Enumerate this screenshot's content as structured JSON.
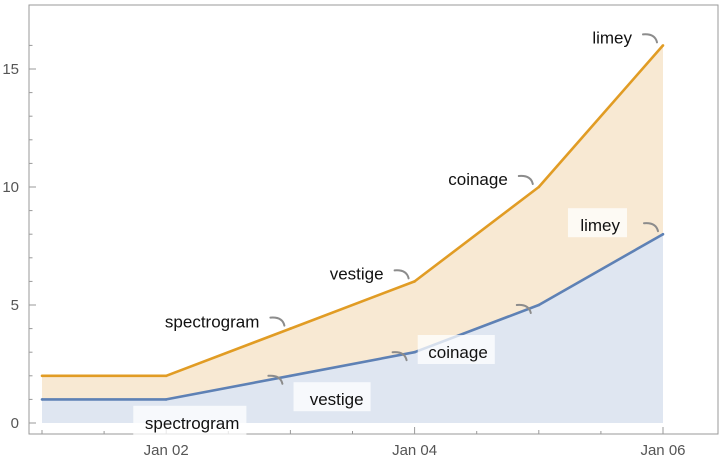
{
  "chart_data": {
    "type": "area",
    "stacked": true,
    "x_type": "date",
    "x": [
      "Jan 01",
      "Jan 02",
      "Jan 03",
      "Jan 04",
      "Jan 05",
      "Jan 06"
    ],
    "x_tick_labels": [
      "Jan 02",
      "Jan 04",
      "Jan 06"
    ],
    "y_ticks": [
      0,
      5,
      10,
      15
    ],
    "ylim": [
      0,
      16.8
    ],
    "grid": false,
    "legend": "none",
    "series": [
      {
        "values": [
          1,
          1,
          2,
          3,
          5,
          8
        ],
        "totals": [
          1,
          1,
          2,
          3,
          5,
          8
        ],
        "line_color": "#5e81b5",
        "fill_color": "#dfe6f1",
        "callouts": [
          {
            "label": "spectrogram",
            "x_index": 2,
            "boxed": true
          },
          {
            "label": "vestige",
            "x_index": 3,
            "boxed": true
          },
          {
            "label": "coinage",
            "x_index": 4,
            "boxed": true
          },
          {
            "label": "limey",
            "x_index": 5,
            "boxed": true
          }
        ]
      },
      {
        "values": [
          1,
          1,
          2,
          3,
          5,
          8
        ],
        "totals": [
          2,
          2,
          4,
          6,
          10,
          16
        ],
        "line_color": "#e19c24",
        "fill_color": "#f8e9d3",
        "callouts": [
          {
            "label": "spectrogram",
            "x_index": 2,
            "boxed": false
          },
          {
            "label": "vestige",
            "x_index": 3,
            "boxed": false
          },
          {
            "label": "coinage",
            "x_index": 4,
            "boxed": false
          },
          {
            "label": "limey",
            "x_index": 5,
            "boxed": false
          }
        ]
      }
    ]
  }
}
